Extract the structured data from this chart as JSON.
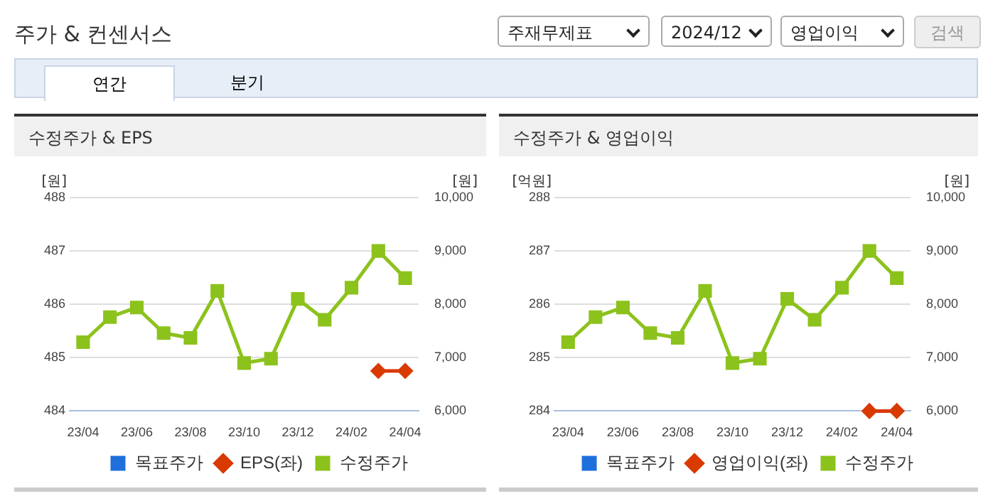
{
  "chart_data": [
    {
      "type": "line",
      "title": "수정주가 & EPS",
      "ylabel": "[원]",
      "y2label": "[원]",
      "annotations": [
        "주가 & 컨센서스",
        "주재무제표",
        "2024/12",
        "영업이익",
        "검색",
        "연간",
        "분기"
      ],
      "categories": [
        "23/04",
        null,
        "23/06",
        null,
        "23/08",
        null,
        "23/10",
        null,
        "23/12",
        null,
        "24/02",
        null,
        "24/04"
      ],
      "series": [
        {
          "name": "목표주가",
          "color": "#1f6fdc",
          "marker": "square",
          "values": [
            null,
            null,
            null,
            null,
            null,
            null,
            null,
            null,
            null,
            null,
            null,
            null,
            null
          ]
        },
        {
          "name": "EPS(좌)",
          "color": "#d83a00",
          "marker": "diamond",
          "values": [
            null,
            null,
            null,
            null,
            null,
            null,
            null,
            null,
            null,
            null,
            null,
            484.75,
            484.75
          ]
        },
        {
          "name": "수정주가",
          "color": "#8cc21c",
          "marker": "square",
          "axis": "y2",
          "values": [
            7290,
            7760,
            7940,
            7460,
            7370,
            8250,
            6900,
            6980,
            8100,
            7710,
            8310,
            9000,
            8490
          ]
        }
      ],
      "ylim": [
        484,
        488
      ],
      "yticks": [
        484,
        485,
        486,
        487,
        488
      ],
      "y2lim": [
        6000,
        10000
      ],
      "y2ticks": [
        {
          "value": 6000,
          "label": "6,000"
        },
        {
          "value": 7000,
          "label": "7,000"
        },
        {
          "value": 8000,
          "label": "8,000"
        },
        {
          "value": 9000,
          "label": "9,000"
        },
        {
          "value": 10000,
          "label": "10,000"
        }
      ],
      "grid": "y",
      "legend": "bottom"
    },
    {
      "type": "line",
      "title": "수정주가 & 영업이익",
      "ylabel": "[억원]",
      "y2label": "[원]",
      "categories": [
        "23/04",
        null,
        "23/06",
        null,
        "23/08",
        null,
        "23/10",
        null,
        "23/12",
        null,
        "24/02",
        null,
        "24/04"
      ],
      "series": [
        {
          "name": "목표주가",
          "color": "#1f6fdc",
          "marker": "square",
          "values": [
            null,
            null,
            null,
            null,
            null,
            null,
            null,
            null,
            null,
            null,
            null,
            null,
            null
          ]
        },
        {
          "name": "영업이익(좌)",
          "color": "#d83a00",
          "marker": "diamond",
          "values": [
            null,
            null,
            null,
            null,
            null,
            null,
            null,
            null,
            null,
            null,
            null,
            284,
            284
          ]
        },
        {
          "name": "수정주가",
          "color": "#8cc21c",
          "marker": "square",
          "axis": "y2",
          "values": [
            7290,
            7760,
            7940,
            7460,
            7370,
            8250,
            6900,
            6980,
            8100,
            7710,
            8310,
            9000,
            8490
          ]
        }
      ],
      "ylim": [
        284,
        288
      ],
      "yticks": [
        284,
        285,
        286,
        287,
        288
      ],
      "y2lim": [
        6000,
        10000
      ],
      "y2ticks": [
        {
          "value": 6000,
          "label": "6,000"
        },
        {
          "value": 7000,
          "label": "7,000"
        },
        {
          "value": 8000,
          "label": "8,000"
        },
        {
          "value": 9000,
          "label": "9,000"
        },
        {
          "value": 10000,
          "label": "10,000"
        }
      ],
      "grid": "y",
      "legend": "bottom"
    }
  ]
}
